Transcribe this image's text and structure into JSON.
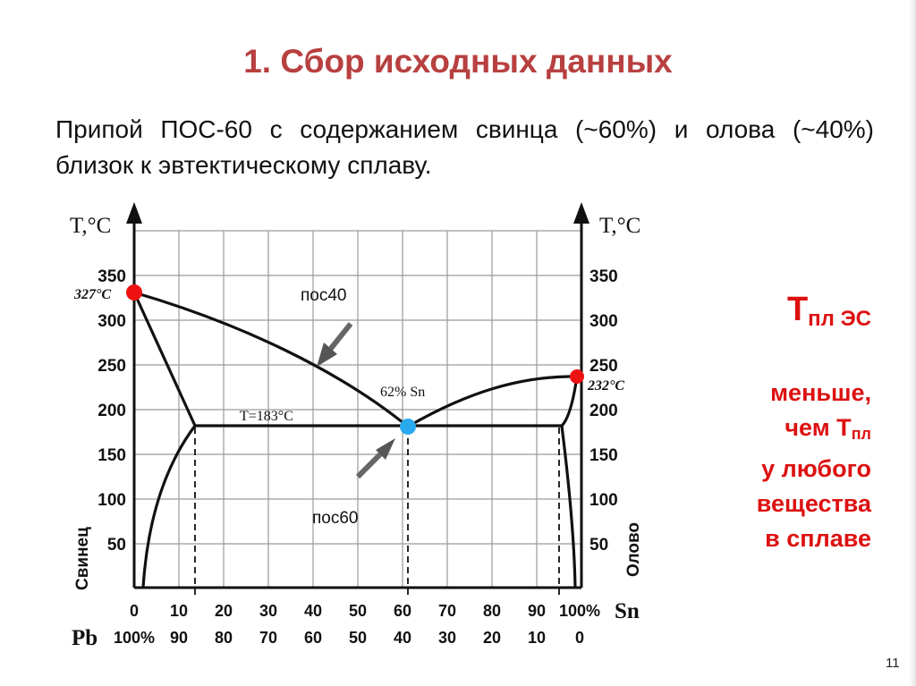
{
  "slide": {
    "title": "1. Сбор исходных данных",
    "intro": "Припой ПОС-60 с содержанием свинца (~60%) и олова (~40%) близок к эвтектическому сплаву.",
    "page_number": "11"
  },
  "diagram": {
    "axis_label_left": "T,°C",
    "axis_label_right": "T,°C",
    "y_ticks": [
      "350",
      "300",
      "250",
      "200",
      "150",
      "100",
      "50"
    ],
    "x_ticks_sn": [
      "0",
      "10",
      "20",
      "30",
      "40",
      "50",
      "60",
      "70",
      "80",
      "90",
      "100%"
    ],
    "x_ticks_pb": [
      "100%",
      "90",
      "80",
      "70",
      "60",
      "50",
      "40",
      "30",
      "20",
      "10",
      "0"
    ],
    "sn_label": "Sn",
    "pb_label": "Pb",
    "left_element": "Свинец",
    "right_element": "Олово",
    "pb_melt_label": "327°C",
    "sn_melt_label": "232°C",
    "eutectic_line_label": "T=183°C",
    "eutectic_comp_label": "62% Sn",
    "arrow_label_1": "пос40",
    "arrow_label_2": "пос60",
    "colors": {
      "melt_point": "#ee1111",
      "eutectic_point": "#29aaee",
      "line": "#111111",
      "grid": "#999999"
    }
  },
  "note": {
    "t_symbol": "T",
    "t_sub": "пл ЭС",
    "line1": "меньше,",
    "line2_prefix": "чем T",
    "line2_sub": "пл",
    "line3": "у любого",
    "line4": "вещества",
    "line5": "в сплаве"
  }
}
